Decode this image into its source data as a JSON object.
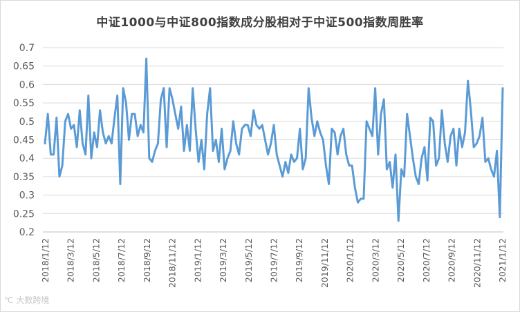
{
  "chart_data": {
    "type": "line",
    "title": "中证1000与中证800指数成分股相对于中证500指数周胜率",
    "xlabel": "",
    "ylabel": "",
    "ylim": [
      0.2,
      0.7
    ],
    "yticks": [
      "0.2",
      "0.25",
      "0.3",
      "0.35",
      "0.4",
      "0.45",
      "0.5",
      "0.55",
      "0.6",
      "0.65",
      "0.7"
    ],
    "xticks": [
      "2018/1/12",
      "2018/3/12",
      "2018/5/12",
      "2018/7/12",
      "2018/9/12",
      "2018/11/12",
      "2019/1/12",
      "2019/3/12",
      "2019/5/12",
      "2019/7/12",
      "2019/9/12",
      "2019/11/12",
      "2020/1/12",
      "2020/3/12",
      "2020/5/12",
      "2020/7/12",
      "2020/9/12",
      "2020/11/12",
      "2021/1/12"
    ],
    "grid": true,
    "legend": "none",
    "color": "#5b9bd5",
    "series": [
      {
        "values": [
          0.44,
          0.52,
          0.41,
          0.41,
          0.51,
          0.35,
          0.38,
          0.5,
          0.52,
          0.48,
          0.49,
          0.43,
          0.53,
          0.44,
          0.41,
          0.57,
          0.4,
          0.47,
          0.43,
          0.53,
          0.47,
          0.44,
          0.46,
          0.44,
          0.51,
          0.57,
          0.33,
          0.59,
          0.55,
          0.45,
          0.52,
          0.52,
          0.46,
          0.49,
          0.47,
          0.67,
          0.4,
          0.39,
          0.42,
          0.44,
          0.56,
          0.59,
          0.43,
          0.59,
          0.56,
          0.52,
          0.48,
          0.54,
          0.42,
          0.49,
          0.42,
          0.59,
          0.48,
          0.39,
          0.45,
          0.37,
          0.52,
          0.59,
          0.42,
          0.45,
          0.39,
          0.48,
          0.37,
          0.4,
          0.42,
          0.5,
          0.44,
          0.41,
          0.48,
          0.49,
          0.49,
          0.46,
          0.53,
          0.49,
          0.48,
          0.49,
          0.45,
          0.41,
          0.44,
          0.49,
          0.41,
          0.38,
          0.35,
          0.39,
          0.36,
          0.41,
          0.39,
          0.4,
          0.48,
          0.37,
          0.4,
          0.59,
          0.51,
          0.46,
          0.5,
          0.47,
          0.45,
          0.38,
          0.33,
          0.48,
          0.47,
          0.41,
          0.46,
          0.48,
          0.41,
          0.38,
          0.38,
          0.32,
          0.28,
          0.29,
          0.29,
          0.5,
          0.48,
          0.46,
          0.59,
          0.41,
          0.52,
          0.56,
          0.37,
          0.39,
          0.32,
          0.41,
          0.23,
          0.37,
          0.35,
          0.52,
          0.46,
          0.4,
          0.35,
          0.33,
          0.4,
          0.43,
          0.34,
          0.51,
          0.5,
          0.38,
          0.4,
          0.53,
          0.44,
          0.39,
          0.46,
          0.48,
          0.38,
          0.48,
          0.43,
          0.47,
          0.61,
          0.53,
          0.43,
          0.44,
          0.46,
          0.51,
          0.39,
          0.4,
          0.37,
          0.35,
          0.42,
          0.24,
          0.59
        ]
      }
    ]
  },
  "watermark": "大数跨境"
}
